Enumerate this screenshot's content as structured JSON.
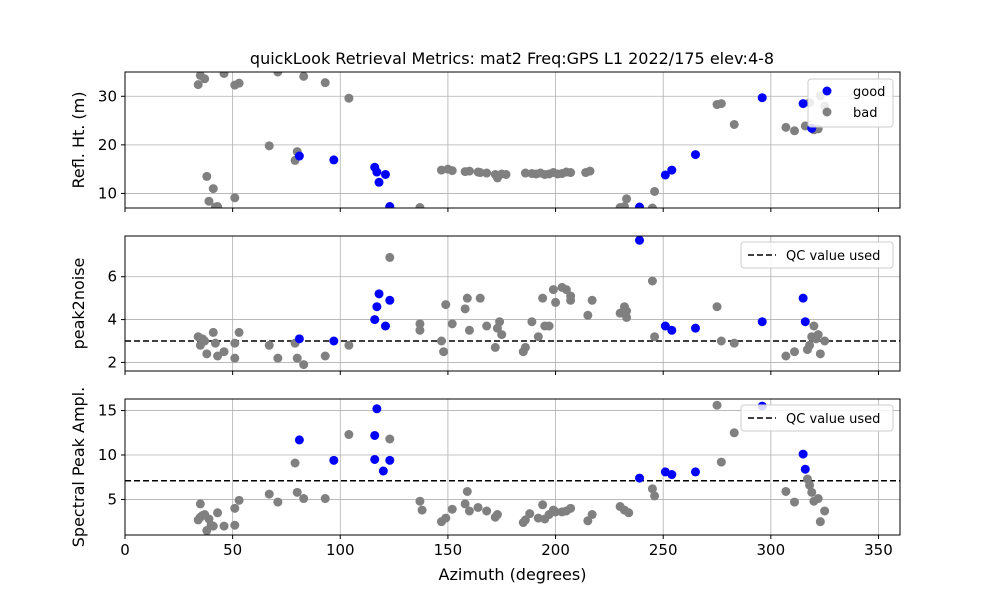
{
  "title": "quickLook Retrieval Metrics: mat2 Freq:GPS L1 2022/175  elev:4-8",
  "colors": {
    "good": "#0000ff",
    "bad": "#808080",
    "grid": "#b0b0b0",
    "qc": "#000000"
  },
  "chart_data": [
    {
      "type": "scatter",
      "ylabel": "Refl. Ht. (m)",
      "xlim": [
        0,
        360
      ],
      "ylim": [
        7,
        35
      ],
      "xticks": [
        0,
        50,
        100,
        150,
        200,
        250,
        300,
        350
      ],
      "yticks": [
        10,
        20,
        30
      ],
      "ytick_labels": [
        "10",
        "20",
        "30"
      ],
      "grid": true,
      "legend": {
        "position": "upper-right",
        "entries": [
          {
            "label": "good",
            "color": "#0000ff"
          },
          {
            "label": "bad",
            "color": "#808080"
          }
        ]
      },
      "series": [
        {
          "name": "good",
          "color": "#0000ff",
          "points": [
            [
              81,
              17.7
            ],
            [
              97,
              16.9
            ],
            [
              116,
              15.4
            ],
            [
              117,
              14.4
            ],
            [
              118,
              12.3
            ],
            [
              121,
              13.9
            ],
            [
              123,
              7.3
            ],
            [
              239,
              7.2
            ],
            [
              251,
              13.8
            ],
            [
              254,
              14.8
            ],
            [
              265,
              18.0
            ],
            [
              296,
              29.7
            ],
            [
              315,
              28.5
            ],
            [
              319,
              23.4
            ]
          ]
        },
        {
          "name": "bad",
          "color": "#808080",
          "points": [
            [
              34,
              32.4
            ],
            [
              35,
              34.3
            ],
            [
              37,
              33.6
            ],
            [
              38,
              13.5
            ],
            [
              39,
              8.4
            ],
            [
              41,
              11.0
            ],
            [
              42,
              7.2
            ],
            [
              43,
              7.3
            ],
            [
              46,
              34.7
            ],
            [
              51,
              9.1
            ],
            [
              51,
              32.3
            ],
            [
              53,
              32.7
            ],
            [
              67,
              19.8
            ],
            [
              71,
              35.0
            ],
            [
              79,
              16.8
            ],
            [
              80,
              18.6
            ],
            [
              83,
              34.1
            ],
            [
              93,
              32.8
            ],
            [
              104,
              29.6
            ],
            [
              137,
              7.1
            ],
            [
              147,
              14.8
            ],
            [
              150,
              15.0
            ],
            [
              152,
              14.7
            ],
            [
              158,
              14.5
            ],
            [
              160,
              14.6
            ],
            [
              164,
              14.4
            ],
            [
              165,
              14.3
            ],
            [
              168,
              14.2
            ],
            [
              172,
              13.9
            ],
            [
              173,
              13.2
            ],
            [
              175,
              14.0
            ],
            [
              177,
              13.9
            ],
            [
              186,
              14.2
            ],
            [
              189,
              14.1
            ],
            [
              191,
              14.0
            ],
            [
              193,
              14.2
            ],
            [
              195,
              13.9
            ],
            [
              197,
              14.0
            ],
            [
              199,
              14.3
            ],
            [
              201,
              14.0
            ],
            [
              203,
              14.1
            ],
            [
              205,
              14.4
            ],
            [
              207,
              14.3
            ],
            [
              214,
              14.3
            ],
            [
              216,
              14.6
            ],
            [
              230,
              7.1
            ],
            [
              232,
              7.3
            ],
            [
              233,
              8.9
            ],
            [
              245,
              7.0
            ],
            [
              246,
              10.4
            ],
            [
              275,
              28.3
            ],
            [
              277,
              28.5
            ],
            [
              283,
              24.2
            ],
            [
              307,
              23.6
            ],
            [
              311,
              22.9
            ],
            [
              316,
              23.9
            ],
            [
              318,
              28.7
            ],
            [
              320,
              23.1
            ],
            [
              322,
              23.3
            ],
            [
              323,
              30.1
            ],
            [
              325,
              28.0
            ]
          ]
        }
      ]
    },
    {
      "type": "scatter",
      "ylabel": "peak2noise",
      "xlim": [
        0,
        360
      ],
      "ylim": [
        1.6,
        7.9
      ],
      "xticks": [
        0,
        50,
        100,
        150,
        200,
        250,
        300,
        350
      ],
      "yticks": [
        2,
        4,
        6
      ],
      "ytick_labels": [
        "2",
        "4",
        "6"
      ],
      "grid": true,
      "qc_value": 3.0,
      "legend": {
        "position": "upper-right",
        "entries": [
          {
            "label": "QC value used",
            "color": "#000000",
            "style": "dashed"
          }
        ]
      },
      "series": [
        {
          "name": "good",
          "color": "#0000ff",
          "points": [
            [
              81,
              3.1
            ],
            [
              97,
              3.0
            ],
            [
              116,
              4.0
            ],
            [
              117,
              4.6
            ],
            [
              118,
              5.2
            ],
            [
              121,
              3.7
            ],
            [
              123,
              4.9
            ],
            [
              239,
              7.7
            ],
            [
              251,
              3.7
            ],
            [
              254,
              3.5
            ],
            [
              265,
              3.6
            ],
            [
              296,
              3.9
            ],
            [
              315,
              5.0
            ],
            [
              316,
              3.9
            ]
          ]
        },
        {
          "name": "bad",
          "color": "#808080",
          "points": [
            [
              34,
              3.2
            ],
            [
              35,
              2.8
            ],
            [
              36,
              3.1
            ],
            [
              37,
              3.0
            ],
            [
              38,
              2.4
            ],
            [
              41,
              3.4
            ],
            [
              42,
              2.9
            ],
            [
              43,
              2.3
            ],
            [
              46,
              2.5
            ],
            [
              51,
              2.2
            ],
            [
              51,
              2.9
            ],
            [
              53,
              3.4
            ],
            [
              67,
              2.8
            ],
            [
              71,
              2.2
            ],
            [
              79,
              2.9
            ],
            [
              80,
              2.2
            ],
            [
              83,
              1.9
            ],
            [
              93,
              2.3
            ],
            [
              104,
              2.8
            ],
            [
              123,
              6.9
            ],
            [
              137,
              3.8
            ],
            [
              137,
              3.5
            ],
            [
              147,
              3.0
            ],
            [
              148,
              2.5
            ],
            [
              149,
              4.7
            ],
            [
              152,
              3.8
            ],
            [
              158,
              4.5
            ],
            [
              159,
              5.0
            ],
            [
              160,
              3.5
            ],
            [
              165,
              5.0
            ],
            [
              168,
              3.7
            ],
            [
              172,
              2.7
            ],
            [
              173,
              3.6
            ],
            [
              174,
              3.9
            ],
            [
              175,
              3.3
            ],
            [
              185,
              2.5
            ],
            [
              186,
              2.7
            ],
            [
              189,
              3.9
            ],
            [
              192,
              3.2
            ],
            [
              194,
              5.0
            ],
            [
              195,
              3.7
            ],
            [
              197,
              3.7
            ],
            [
              199,
              5.4
            ],
            [
              200,
              4.8
            ],
            [
              203,
              5.5
            ],
            [
              205,
              5.4
            ],
            [
              207,
              5.1
            ],
            [
              207,
              4.9
            ],
            [
              215,
              4.2
            ],
            [
              217,
              4.9
            ],
            [
              230,
              4.3
            ],
            [
              232,
              4.6
            ],
            [
              233,
              4.1
            ],
            [
              233,
              4.4
            ],
            [
              245,
              5.8
            ],
            [
              246,
              3.2
            ],
            [
              275,
              4.6
            ],
            [
              277,
              3.0
            ],
            [
              283,
              2.9
            ],
            [
              307,
              2.3
            ],
            [
              311,
              2.5
            ],
            [
              317,
              2.6
            ],
            [
              318,
              2.8
            ],
            [
              319,
              3.2
            ],
            [
              320,
              3.7
            ],
            [
              321,
              3.1
            ],
            [
              322,
              3.3
            ],
            [
              323,
              2.4
            ],
            [
              325,
              3.0
            ]
          ]
        }
      ]
    },
    {
      "type": "scatter",
      "ylabel": "Spectral Peak Ampl.",
      "xlabel": "Azimuth (degrees)",
      "xlim": [
        0,
        360
      ],
      "ylim": [
        1.0,
        16.3
      ],
      "xticks": [
        0,
        50,
        100,
        150,
        200,
        250,
        300,
        350
      ],
      "xtick_labels": [
        "0",
        "50",
        "100",
        "150",
        "200",
        "250",
        "300",
        "350"
      ],
      "yticks": [
        5,
        10,
        15
      ],
      "ytick_labels": [
        "5",
        "10",
        "15"
      ],
      "grid": true,
      "qc_value": 7.1,
      "legend": {
        "position": "upper-right",
        "entries": [
          {
            "label": "QC value used",
            "color": "#000000",
            "style": "dashed"
          }
        ]
      },
      "series": [
        {
          "name": "good",
          "color": "#0000ff",
          "points": [
            [
              81,
              11.7
            ],
            [
              97,
              9.4
            ],
            [
              116,
              9.5
            ],
            [
              116,
              12.2
            ],
            [
              117,
              15.2
            ],
            [
              120,
              8.2
            ],
            [
              123,
              9.4
            ],
            [
              239,
              7.4
            ],
            [
              251,
              8.1
            ],
            [
              254,
              7.8
            ],
            [
              265,
              8.1
            ],
            [
              296,
              15.5
            ],
            [
              315,
              10.1
            ],
            [
              316,
              8.4
            ]
          ]
        },
        {
          "name": "bad",
          "color": "#808080",
          "points": [
            [
              34,
              2.7
            ],
            [
              35,
              4.5
            ],
            [
              35,
              3.0
            ],
            [
              36,
              3.2
            ],
            [
              37,
              3.3
            ],
            [
              38,
              1.5
            ],
            [
              39,
              2.8
            ],
            [
              40,
              2.1
            ],
            [
              41,
              2.0
            ],
            [
              43,
              3.5
            ],
            [
              46,
              2.0
            ],
            [
              51,
              2.1
            ],
            [
              51,
              4.0
            ],
            [
              53,
              4.9
            ],
            [
              67,
              5.6
            ],
            [
              71,
              4.7
            ],
            [
              79,
              9.1
            ],
            [
              80,
              5.8
            ],
            [
              83,
              5.1
            ],
            [
              93,
              5.1
            ],
            [
              104,
              12.3
            ],
            [
              123,
              11.8
            ],
            [
              137,
              4.8
            ],
            [
              138,
              3.8
            ],
            [
              147,
              2.5
            ],
            [
              149,
              2.9
            ],
            [
              152,
              3.9
            ],
            [
              158,
              4.5
            ],
            [
              159,
              5.9
            ],
            [
              160,
              3.7
            ],
            [
              164,
              4.1
            ],
            [
              168,
              3.7
            ],
            [
              172,
              3.0
            ],
            [
              173,
              3.3
            ],
            [
              185,
              2.4
            ],
            [
              186,
              2.7
            ],
            [
              188,
              3.4
            ],
            [
              192,
              2.9
            ],
            [
              194,
              4.4
            ],
            [
              195,
              2.8
            ],
            [
              197,
              3.3
            ],
            [
              199,
              3.8
            ],
            [
              200,
              3.6
            ],
            [
              203,
              3.6
            ],
            [
              205,
              3.7
            ],
            [
              207,
              4.0
            ],
            [
              215,
              2.6
            ],
            [
              217,
              3.3
            ],
            [
              230,
              4.2
            ],
            [
              232,
              3.8
            ],
            [
              234,
              3.5
            ],
            [
              245,
              6.2
            ],
            [
              246,
              5.4
            ],
            [
              275,
              15.6
            ],
            [
              277,
              9.2
            ],
            [
              283,
              12.5
            ],
            [
              307,
              5.9
            ],
            [
              311,
              4.7
            ],
            [
              317,
              7.3
            ],
            [
              318,
              6.6
            ],
            [
              319,
              5.8
            ],
            [
              320,
              4.8
            ],
            [
              322,
              5.1
            ],
            [
              323,
              2.5
            ],
            [
              325,
              3.7
            ]
          ]
        }
      ]
    }
  ]
}
